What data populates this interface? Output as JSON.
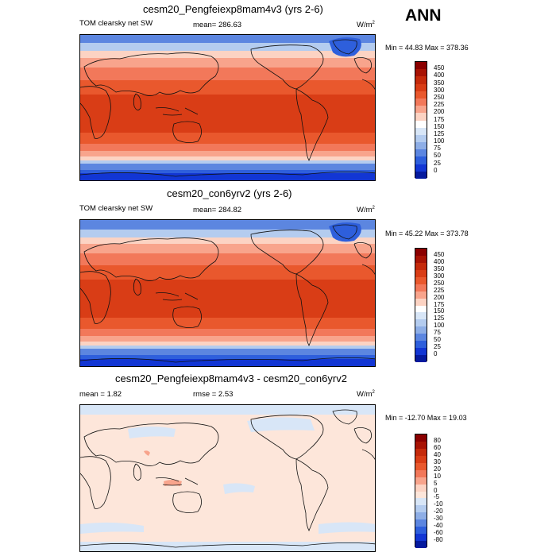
{
  "season": "ANN",
  "panels": [
    {
      "title": "cesm20_Pengfeiexp8mam4v3 (yrs 2-6)",
      "left_label": "TOM clearsky net SW",
      "center_label": "mean=  286.63",
      "units": "W/m",
      "units_sup": "2",
      "min_label": "Min =  44.83",
      "max_label": "Max = 378.36",
      "colorbar": {
        "levels": [
          "450",
          "400",
          "350",
          "300",
          "250",
          "225",
          "200",
          "175",
          "150",
          "125",
          "100",
          "75",
          "50",
          "25",
          "0"
        ],
        "colors": [
          "#8b0000",
          "#a81304",
          "#c52a0b",
          "#d93d16",
          "#e9582d",
          "#f2785a",
          "#f8a48c",
          "#fcd3c3",
          "#ffffff",
          "#d8e6f7",
          "#b4ccef",
          "#8eaee6",
          "#5c86e0",
          "#2e5fdc",
          "#1236d4",
          "#051a9e"
        ]
      }
    },
    {
      "title": "cesm20_con6yrv2 (yrs 2-6)",
      "left_label": "TOM clearsky net SW",
      "center_label": "mean=  284.82",
      "units": "W/m",
      "units_sup": "2",
      "min_label": "Min =  45.22",
      "max_label": "Max = 373.78",
      "colorbar": {
        "levels": [
          "450",
          "400",
          "350",
          "300",
          "250",
          "225",
          "200",
          "175",
          "150",
          "125",
          "100",
          "75",
          "50",
          "25",
          "0"
        ],
        "colors": [
          "#8b0000",
          "#a81304",
          "#c52a0b",
          "#d93d16",
          "#e9582d",
          "#f2785a",
          "#f8a48c",
          "#fcd3c3",
          "#ffffff",
          "#d8e6f7",
          "#b4ccef",
          "#8eaee6",
          "#5c86e0",
          "#2e5fdc",
          "#1236d4",
          "#051a9e"
        ]
      }
    },
    {
      "title": "cesm20_Pengfeiexp8mam4v3 - cesm20_con6yrv2",
      "left_label": "mean =   1.82",
      "center_label": "rmse =   2.53",
      "units": "W/m",
      "units_sup": "2",
      "min_label": "Min = -12.70",
      "max_label": "Max =  19.03",
      "colorbar": {
        "levels": [
          "80",
          "60",
          "40",
          "30",
          "20",
          "10",
          "5",
          "0",
          "-5",
          "-10",
          "-20",
          "-30",
          "-40",
          "-60",
          "-80"
        ],
        "colors": [
          "#8b0000",
          "#a81304",
          "#c52a0b",
          "#d93d16",
          "#e9582d",
          "#f2785a",
          "#f8a48c",
          "#fcd3c3",
          "#fde6da",
          "#d8e6f7",
          "#b4ccef",
          "#8eaee6",
          "#5c86e0",
          "#2e5fdc",
          "#1236d4",
          "#051a9e"
        ]
      }
    }
  ]
}
